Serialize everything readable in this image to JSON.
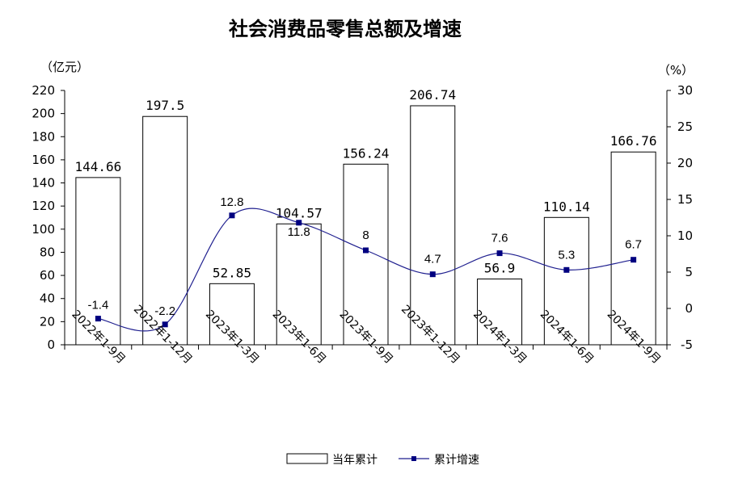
{
  "chart_data": {
    "type": "bar+line",
    "title": "社会消费品零售总额及增速",
    "left_unit": "（亿元）",
    "right_unit": "（%）",
    "categories": [
      "2022年1-9月",
      "2022年1-12月",
      "2023年1-3月",
      "2023年1-6月",
      "2023年1-9月",
      "2023年1-12月",
      "2024年1-3月",
      "2024年1-6月",
      "2024年1-9月"
    ],
    "bar_labels": [
      "144.66",
      "197.5",
      "52.85",
      "104.57",
      "156.24",
      "206.74",
      "56.9",
      "110.14",
      "166.76"
    ],
    "line_labels": [
      "-1.4",
      "-2.2",
      "12.8",
      "11.8",
      "8",
      "4.7",
      "7.6",
      "5.3",
      "6.7"
    ],
    "series": [
      {
        "name": "当年累计",
        "type": "bar",
        "axis": "left",
        "values": [
          144.66,
          197.5,
          52.85,
          104.57,
          156.24,
          206.74,
          56.9,
          110.14,
          166.76
        ]
      },
      {
        "name": "累计增速",
        "type": "line",
        "axis": "right",
        "values": [
          -1.4,
          -2.2,
          12.8,
          11.8,
          8,
          4.7,
          7.6,
          5.3,
          6.7
        ]
      }
    ],
    "left_axis": {
      "min": 0,
      "max": 220,
      "step": 20,
      "ticks": [
        "0",
        "20",
        "40",
        "60",
        "80",
        "100",
        "120",
        "140",
        "160",
        "180",
        "200",
        "220"
      ]
    },
    "right_axis": {
      "min": -5,
      "max": 30,
      "step": 5,
      "ticks": [
        "-5",
        "0",
        "5",
        "10",
        "15",
        "20",
        "25",
        "30"
      ]
    },
    "grid": false,
    "legend_position": "bottom",
    "colors": {
      "bar_fill": "#ffffff",
      "bar_stroke": "#000000",
      "line": "#1f1f8f",
      "marker": "#000080"
    }
  }
}
